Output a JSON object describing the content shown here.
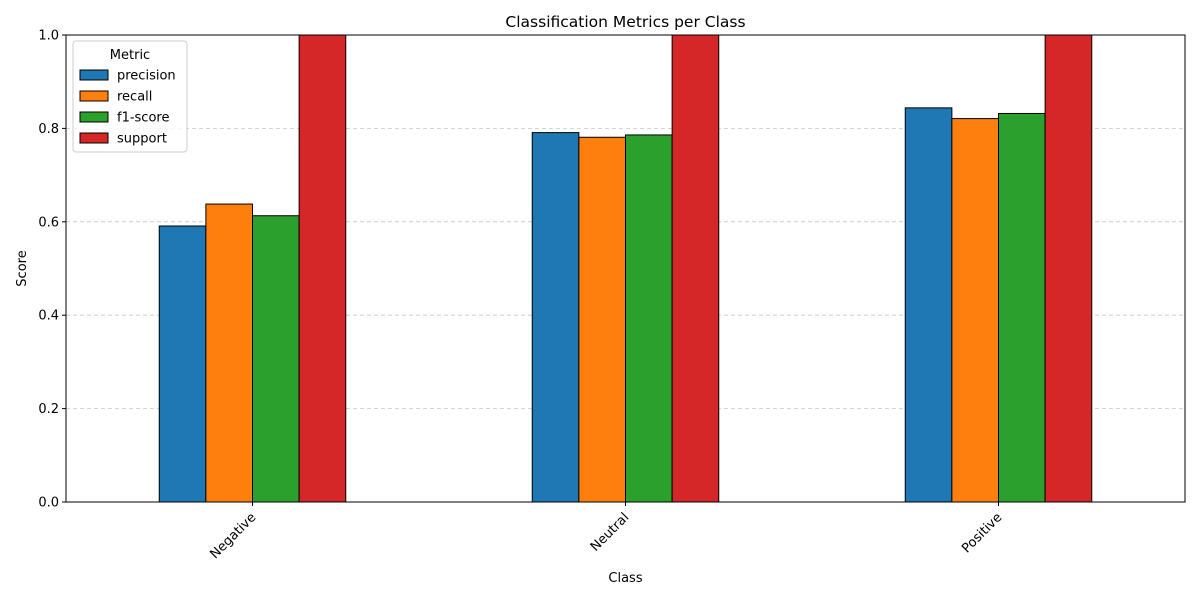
{
  "chart_data": {
    "type": "bar",
    "title": "Classification Metrics per Class",
    "xlabel": "Class",
    "ylabel": "Score",
    "categories": [
      "Negative",
      "Neutral",
      "Positive"
    ],
    "series": [
      {
        "name": "precision",
        "values": [
          0.591,
          0.791,
          0.844
        ],
        "color": "#1f77b4"
      },
      {
        "name": "recall",
        "values": [
          0.638,
          0.781,
          0.821
        ],
        "color": "#ff7f0e"
      },
      {
        "name": "f1-score",
        "values": [
          0.613,
          0.786,
          0.832
        ],
        "color": "#2ca02c"
      },
      {
        "name": "support",
        "values": [
          1.0,
          1.0,
          1.0
        ],
        "color": "#d62728"
      }
    ],
    "ylim": [
      0,
      1.0
    ],
    "yticks": [
      "0.0",
      "0.2",
      "0.4",
      "0.6",
      "0.8",
      "1.0"
    ],
    "ytick_values": [
      0,
      0.2,
      0.4,
      0.6,
      0.8,
      1.0
    ],
    "grid": "y, dashed",
    "legend": {
      "title": "Metric",
      "placement": "upper-left"
    },
    "x_tick_rotation": 45
  }
}
